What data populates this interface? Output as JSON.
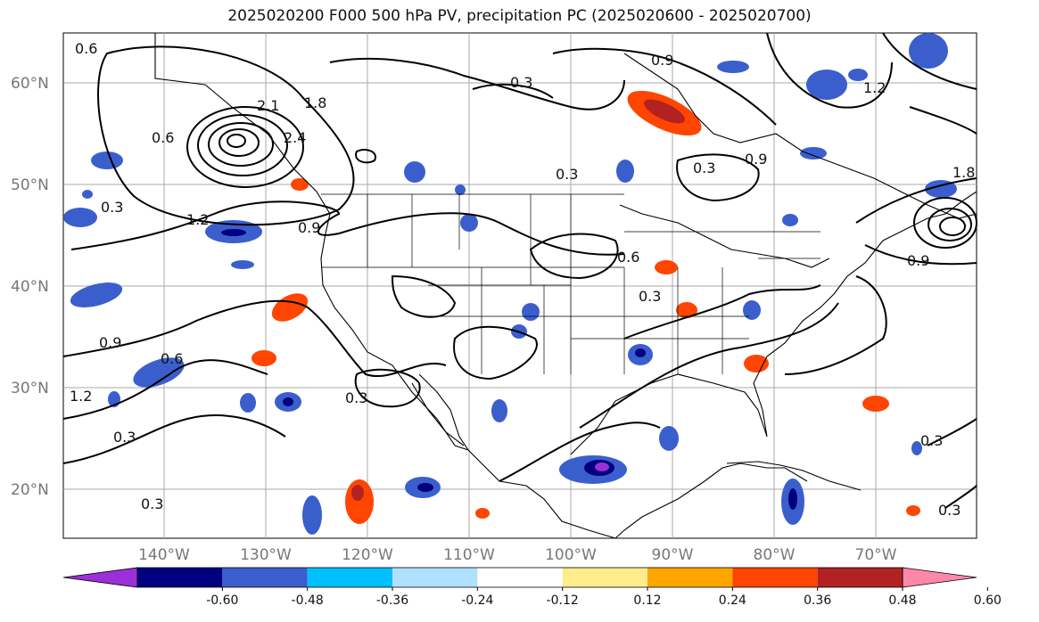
{
  "title": "2025020200 F000 500 hPa PV, precipitation PC (2025020600 - 2025020700)",
  "lat_labels": [
    "60°N",
    "50°N",
    "40°N",
    "30°N",
    "20°N"
  ],
  "lon_labels": [
    "140°W",
    "130°W",
    "120°W",
    "110°W",
    "100°W",
    "90°W",
    "80°W",
    "70°W"
  ],
  "contour_labels": [
    "0.6",
    "1.8",
    "2.1",
    "0.3",
    "0.9",
    "1.2",
    "0.3",
    "0.6",
    "0.9",
    "1.2",
    "0.3",
    "0.3",
    "0.6",
    "0.3",
    "0.9",
    "1.8",
    "0.9",
    "1.2",
    "0.3",
    "0.3",
    "0.3",
    "0.6",
    "2.4",
    "0.3",
    "0.9",
    "0.3"
  ],
  "colorbar": {
    "ticks": [
      "-0.60",
      "-0.48",
      "-0.36",
      "-0.24",
      "-0.12",
      "0.12",
      "0.24",
      "0.36",
      "0.48",
      "0.60"
    ],
    "colors": [
      "#9b30d9",
      "#000080",
      "#3a5fcd",
      "#00bfff",
      "#b0e0ff",
      "#ffffff",
      "#ffec8b",
      "#ffa500",
      "#ff4500",
      "#b22222",
      "#ff88aa"
    ]
  }
}
